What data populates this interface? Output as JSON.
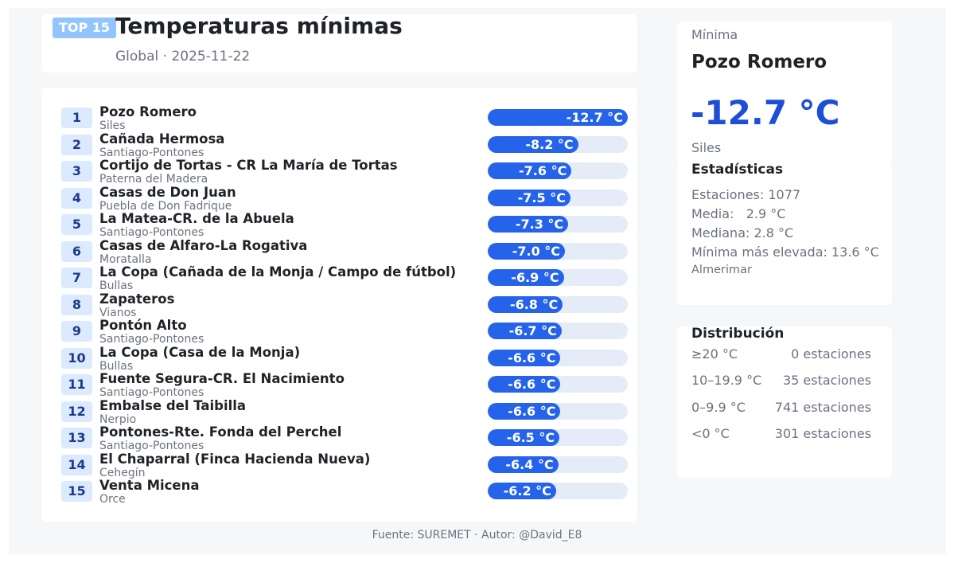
{
  "header": {
    "badge": "TOP 15",
    "title": "Temperaturas mínimas",
    "subtitle": "Global · 2025-11-22"
  },
  "scale": {
    "min_temp": -12.7
  },
  "stations": [
    {
      "rank": "1",
      "name": "Pozo Romero",
      "location": "Siles",
      "value": -12.7,
      "label": "-12.7 °C"
    },
    {
      "rank": "2",
      "name": "Cañada Hermosa",
      "location": "Santiago-Pontones",
      "value": -8.2,
      "label": "-8.2 °C"
    },
    {
      "rank": "3",
      "name": "Cortijo de Tortas - CR La María de Tortas",
      "location": "Paterna del Madera",
      "value": -7.6,
      "label": "-7.6 °C"
    },
    {
      "rank": "4",
      "name": "Casas de Don Juan",
      "location": "Puebla de Don Fadrique",
      "value": -7.5,
      "label": "-7.5 °C"
    },
    {
      "rank": "5",
      "name": "La Matea-CR. de la Abuela",
      "location": "Santiago-Pontones",
      "value": -7.3,
      "label": "-7.3 °C"
    },
    {
      "rank": "6",
      "name": "Casas de Alfaro-La Rogativa",
      "location": "Moratalla",
      "value": -7.0,
      "label": "-7.0 °C"
    },
    {
      "rank": "7",
      "name": "La Copa  (Cañada de la Monja / Campo de fútbol)",
      "location": "Bullas",
      "value": -6.9,
      "label": "-6.9 °C"
    },
    {
      "rank": "8",
      "name": "Zapateros",
      "location": "Vianos",
      "value": -6.8,
      "label": "-6.8 °C"
    },
    {
      "rank": "9",
      "name": "Pontón Alto",
      "location": "Santiago-Pontones",
      "value": -6.7,
      "label": "-6.7 °C"
    },
    {
      "rank": "10",
      "name": "La Copa (Casa de la Monja)",
      "location": "Bullas",
      "value": -6.6,
      "label": "-6.6 °C"
    },
    {
      "rank": "11",
      "name": "Fuente Segura-CR. El Nacimiento",
      "location": "Santiago-Pontones",
      "value": -6.6,
      "label": "-6.6 °C"
    },
    {
      "rank": "12",
      "name": "Embalse del Taibilla",
      "location": "Nerpio",
      "value": -6.6,
      "label": "-6.6 °C"
    },
    {
      "rank": "13",
      "name": "Pontones-Rte. Fonda del Perchel",
      "location": "Santiago-Pontones",
      "value": -6.5,
      "label": "-6.5 °C"
    },
    {
      "rank": "14",
      "name": "El Chaparral (Finca Hacienda Nueva)",
      "location": "Cehegín",
      "value": -6.4,
      "label": "-6.4 °C"
    },
    {
      "rank": "15",
      "name": "Venta Micena",
      "location": "Orce",
      "value": -6.2,
      "label": "-6.2 °C"
    }
  ],
  "footer": "Fuente: SUREMET · Autor: @David_E8",
  "minimum": {
    "label": "Mínima",
    "station": "Pozo Romero",
    "value": "-12.7 °C",
    "location": "Siles"
  },
  "stats": {
    "title": "Estadísticas",
    "stations": "Estaciones: 1077",
    "mean": "Media:   2.9 °C",
    "median": "Mediana: 2.8 °C",
    "highest_min": "Mínima más elevada: 13.6 °C",
    "highest_min_station": "Almerimar"
  },
  "distribution": {
    "title": "Distribución",
    "rows": [
      {
        "range": "≥20 °C",
        "count": "0 estaciones"
      },
      {
        "range": "10–19.9 °C",
        "count": "35 estaciones"
      },
      {
        "range": "0–9.9 °C",
        "count": "741 estaciones"
      },
      {
        "range": "<0 °C",
        "count": "301 estaciones"
      }
    ]
  },
  "colors": {
    "bar": "#2563eb",
    "bar_track": "#e3ecf7",
    "badge": "#93c5fd",
    "accent_value": "#1d4ed8"
  }
}
